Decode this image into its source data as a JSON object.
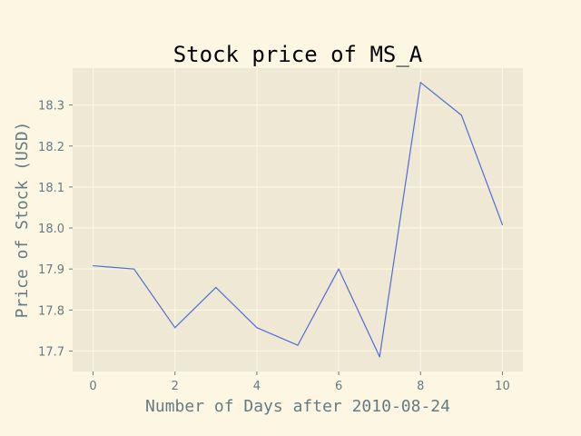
{
  "chart_data": {
    "type": "line",
    "title": "Stock price of MS_A",
    "xlabel": "Number of Days after 2010-08-24",
    "ylabel": "Price of Stock (USD)",
    "x": [
      0,
      1,
      2,
      3,
      4,
      5,
      6,
      7,
      8,
      9,
      10
    ],
    "series": [
      {
        "values": [
          17.908,
          17.9,
          17.757,
          17.855,
          17.757,
          17.714,
          17.9,
          17.686,
          18.355,
          18.275,
          18.008
        ]
      }
    ],
    "xlim": [
      -0.5,
      10.5
    ],
    "ylim": [
      17.65,
      18.39
    ],
    "xticks": [
      0,
      2,
      4,
      6,
      8,
      10
    ],
    "yticks": [
      17.7,
      17.8,
      17.9,
      18.0,
      18.1,
      18.2,
      18.3
    ],
    "ytick_labels": [
      "17.7",
      "17.8",
      "17.9",
      "18.0",
      "18.1",
      "18.2",
      "18.3"
    ],
    "grid": true,
    "colors": {
      "page_background": "#fdf6e3",
      "plot_background": "#eee8d5",
      "line": "#4c6ed6",
      "grid": "#fdf6e3",
      "axis_text": "#657b83"
    }
  }
}
